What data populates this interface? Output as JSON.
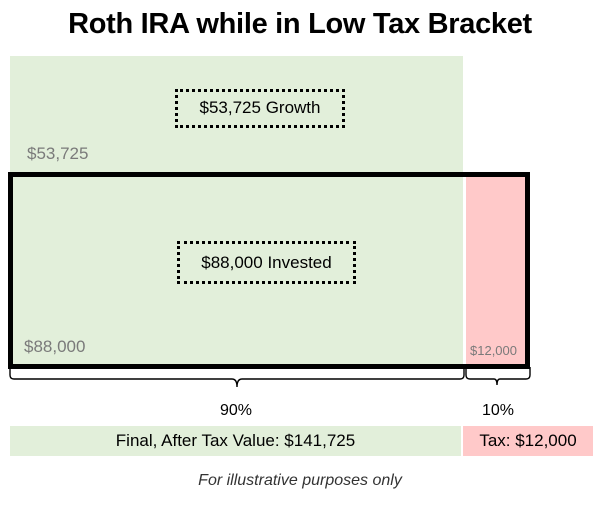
{
  "title": "Roth IRA while in Low Tax Bracket",
  "blocks": {
    "growth": {
      "label": "$53,725  Growth",
      "value": "$53,725"
    },
    "invested": {
      "label": "$88,000  Invested",
      "value": "$88,000"
    },
    "tax": {
      "value": "$12,000"
    }
  },
  "split": {
    "left_pct": "90%",
    "right_pct": "10%"
  },
  "summary": {
    "final_label": "Final, After Tax Value:  $141,725",
    "tax_label": "Tax: $12,000"
  },
  "caption": "For illustrative purposes only",
  "colors": {
    "green": "#e2efda",
    "pink": "#ffc9c9",
    "outline": "#000000"
  }
}
